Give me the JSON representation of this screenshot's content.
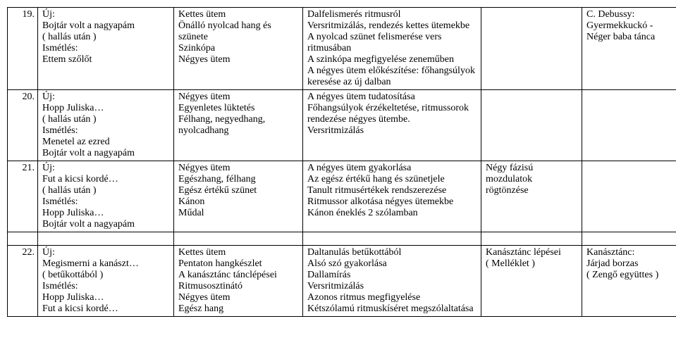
{
  "rows": [
    {
      "num": "19.",
      "col1": "Új:\nBojtár volt a nagyapám\n( hallás után )\nIsmétlés:\nEttem szőlőt",
      "col2": "Kettes ütem\nÖnálló nyolcad hang és szünete\nSzinkópa\nNégyes ütem",
      "col3": "Dalfelismerés ritmusról\nVersritmizálás, rendezés kettes ütemekbe\nA nyolcad szünet felismerése vers ritmusában\nA szinkópa megfigyelése zeneműben\nA négyes ütem előkészítése: főhangsúlyok keresése az új dalban",
      "col4": "",
      "col5": "C. Debussy:\nGyermekkuckó -\nNéger baba tánca",
      "col6": ""
    },
    {
      "num": "20.",
      "col1": "Új:\nHopp Juliska…\n( hallás után )\nIsmétlés:\nMenetel az ezred\nBojtár volt a nagyapám",
      "col2": "Négyes ütem\nEgyenletes lüktetés\nFélhang, negyedhang, nyolcadhang",
      "col3": "A négyes ütem tudatosítása\nFőhangsúlyok érzékeltetése, ritmussorok rendezése négyes ütembe.\nVersritmizálás",
      "col4": "",
      "col5": "",
      "col6": ""
    },
    {
      "num": "21.",
      "col1": "Új:\nFut a kicsi kordé…\n( hallás után )\nIsmétlés:\nHopp Juliska…\nBojtár volt a nagyapám",
      "col2": "Négyes ütem\nEgészhang, félhang\nEgész értékű szünet\nKánon\nMűdal",
      "col3": "A négyes ütem gyakorlása\nAz egész értékű hang és szünetjele\nTanult ritmusértékek rendszerezése\nRitmussor alkotása négyes ütemekbe\nKánon éneklés 2 szólamban",
      "col4": "Négy fázisú mozdulatok rögtönzése",
      "col5": "",
      "col6": ""
    },
    {
      "num": "22.",
      "col1": "Új:\nMegismerni a kanászt…\n( betűkottából )\nIsmétlés:\nHopp Juliska…\nFut a kicsi kordé…",
      "col2": "Kettes ütem\nPentaton hangkészlet\nA kanásztánc tánclépései\nRitmusosztinátó\nNégyes ütem\nEgész hang",
      "col3": "Daltanulás betűkottából\nAlsó szó gyakorlása\nDallamírás\nVersritmizálás\nAzonos ritmus megfigyelése\nKétszólamú ritmuskíséret megszólaltatása",
      "col4": "Kanásztánc lépései\n( Melléklet )",
      "col5": "Kanásztánc:\nJárjad borzas\n( Zengő együttes )",
      "col6": ""
    }
  ]
}
